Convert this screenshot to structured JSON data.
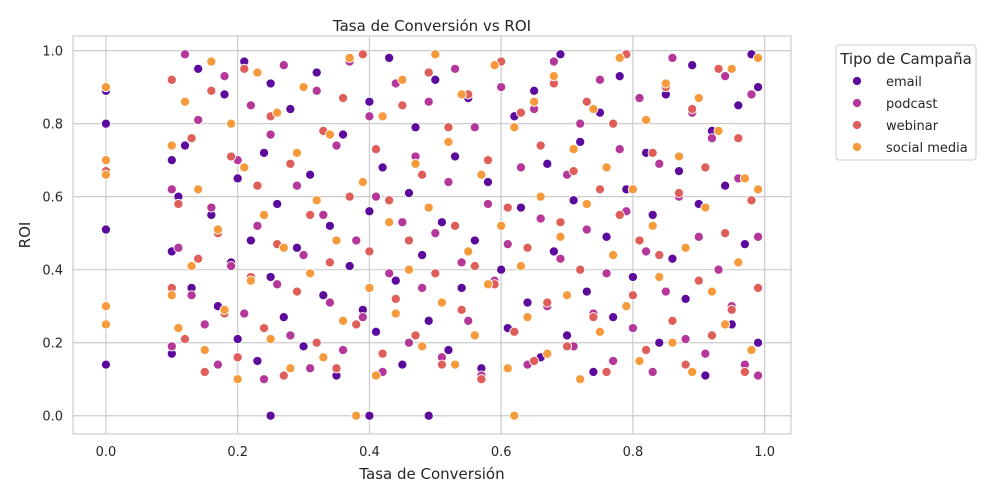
{
  "chart_data": {
    "type": "scatter",
    "title": "Tasa de Conversión vs ROI",
    "xlabel": "Tasa de Conversión",
    "ylabel": "ROI",
    "xlim": [
      -0.05,
      1.04
    ],
    "ylim": [
      -0.05,
      1.04
    ],
    "xticks": [
      0.0,
      0.2,
      0.4,
      0.6,
      0.8,
      1.0
    ],
    "yticks": [
      0.0,
      0.2,
      0.4,
      0.6,
      0.8,
      1.0
    ],
    "tick_labels_x": [
      "0.0",
      "0.2",
      "0.4",
      "0.6",
      "0.8",
      "1.0"
    ],
    "tick_labels_y": [
      "0.0",
      "0.2",
      "0.4",
      "0.6",
      "0.8",
      "1.0"
    ],
    "grid": true,
    "legend": {
      "title": "Tipo de Campaña",
      "placement": "outside-right"
    },
    "series": [
      {
        "name": "email",
        "color": "#5c0a9e",
        "x": [
          0.0,
          0.0,
          0.0,
          0.0,
          0.1,
          0.1,
          0.1,
          0.11,
          0.12,
          0.13,
          0.14,
          0.15,
          0.16,
          0.17,
          0.18,
          0.19,
          0.2,
          0.2,
          0.21,
          0.22,
          0.23,
          0.24,
          0.25,
          0.25,
          0.25,
          0.26,
          0.27,
          0.28,
          0.29,
          0.3,
          0.31,
          0.32,
          0.33,
          0.34,
          0.35,
          0.36,
          0.37,
          0.38,
          0.39,
          0.4,
          0.4,
          0.4,
          0.41,
          0.42,
          0.43,
          0.44,
          0.45,
          0.46,
          0.47,
          0.48,
          0.49,
          0.49,
          0.5,
          0.51,
          0.52,
          0.53,
          0.54,
          0.55,
          0.56,
          0.57,
          0.58,
          0.59,
          0.6,
          0.61,
          0.62,
          0.63,
          0.64,
          0.65,
          0.66,
          0.67,
          0.68,
          0.69,
          0.7,
          0.71,
          0.72,
          0.73,
          0.74,
          0.75,
          0.76,
          0.77,
          0.78,
          0.79,
          0.8,
          0.81,
          0.82,
          0.83,
          0.84,
          0.85,
          0.86,
          0.87,
          0.88,
          0.89,
          0.9,
          0.91,
          0.92,
          0.93,
          0.94,
          0.95,
          0.96,
          0.97,
          0.98,
          0.99,
          0.99
        ],
        "y": [
          0.89,
          0.8,
          0.51,
          0.14,
          0.7,
          0.45,
          0.17,
          0.6,
          0.74,
          0.35,
          0.95,
          0.12,
          0.55,
          0.3,
          0.88,
          0.42,
          0.65,
          0.21,
          0.97,
          0.48,
          0.15,
          0.72,
          0.0,
          0.38,
          0.91,
          0.58,
          0.27,
          0.84,
          0.46,
          0.19,
          0.66,
          0.94,
          0.33,
          0.52,
          0.11,
          0.77,
          0.41,
          0.0,
          0.29,
          0.86,
          0.0,
          0.56,
          0.23,
          0.68,
          0.98,
          0.37,
          0.14,
          0.61,
          0.79,
          0.44,
          0.0,
          0.26,
          0.92,
          0.53,
          0.18,
          0.71,
          0.35,
          0.87,
          0.48,
          0.13,
          0.64,
          0.96,
          0.4,
          0.24,
          0.82,
          0.57,
          0.31,
          0.89,
          0.16,
          0.69,
          0.45,
          0.99,
          0.22,
          0.59,
          0.75,
          0.34,
          0.12,
          0.83,
          0.49,
          0.27,
          0.93,
          0.62,
          0.38,
          0.15,
          0.72,
          0.55,
          0.2,
          0.88,
          0.43,
          0.67,
          0.32,
          0.96,
          0.58,
          0.11,
          0.78,
          0.4,
          0.63,
          0.25,
          0.85,
          0.47,
          0.99,
          0.2,
          0.9
        ]
      },
      {
        "name": "podcast",
        "color": "#b5379a",
        "x": [
          0.1,
          0.1,
          0.11,
          0.12,
          0.13,
          0.14,
          0.15,
          0.16,
          0.17,
          0.18,
          0.19,
          0.2,
          0.21,
          0.22,
          0.23,
          0.24,
          0.25,
          0.26,
          0.27,
          0.28,
          0.29,
          0.3,
          0.31,
          0.32,
          0.33,
          0.34,
          0.35,
          0.36,
          0.37,
          0.38,
          0.39,
          0.4,
          0.41,
          0.42,
          0.43,
          0.44,
          0.45,
          0.46,
          0.47,
          0.48,
          0.49,
          0.5,
          0.51,
          0.52,
          0.53,
          0.54,
          0.55,
          0.56,
          0.57,
          0.58,
          0.59,
          0.6,
          0.61,
          0.62,
          0.63,
          0.64,
          0.65,
          0.66,
          0.67,
          0.68,
          0.69,
          0.7,
          0.71,
          0.72,
          0.73,
          0.74,
          0.75,
          0.76,
          0.77,
          0.78,
          0.79,
          0.8,
          0.81,
          0.82,
          0.83,
          0.84,
          0.85,
          0.86,
          0.87,
          0.88,
          0.89,
          0.9,
          0.91,
          0.92,
          0.93,
          0.94,
          0.95,
          0.96,
          0.97,
          0.98,
          0.99,
          0.99
        ],
        "y": [
          0.62,
          0.19,
          0.46,
          0.99,
          0.33,
          0.81,
          0.25,
          0.57,
          0.14,
          0.93,
          0.41,
          0.7,
          0.28,
          0.85,
          0.52,
          0.1,
          0.77,
          0.36,
          0.96,
          0.22,
          0.63,
          0.44,
          0.13,
          0.89,
          0.55,
          0.31,
          0.74,
          0.18,
          0.97,
          0.48,
          0.27,
          0.82,
          0.6,
          0.12,
          0.39,
          0.91,
          0.53,
          0.2,
          0.71,
          0.35,
          0.86,
          0.5,
          0.16,
          0.64,
          0.95,
          0.42,
          0.26,
          0.79,
          0.11,
          0.58,
          0.37,
          0.9,
          0.47,
          0.23,
          0.68,
          0.14,
          0.84,
          0.54,
          0.3,
          0.97,
          0.43,
          0.66,
          0.19,
          0.8,
          0.51,
          0.28,
          0.92,
          0.39,
          0.15,
          0.73,
          0.56,
          0.24,
          0.87,
          0.45,
          0.12,
          0.69,
          0.34,
          0.98,
          0.6,
          0.21,
          0.83,
          0.49,
          0.17,
          0.76,
          0.4,
          0.93,
          0.3,
          0.65,
          0.14,
          0.88,
          0.11,
          0.49
        ]
      },
      {
        "name": "webinar",
        "color": "#df5e5a",
        "x": [
          0.0,
          0.1,
          0.1,
          0.11,
          0.12,
          0.13,
          0.14,
          0.15,
          0.16,
          0.17,
          0.18,
          0.19,
          0.2,
          0.21,
          0.22,
          0.23,
          0.24,
          0.25,
          0.26,
          0.27,
          0.28,
          0.29,
          0.3,
          0.31,
          0.32,
          0.33,
          0.34,
          0.35,
          0.36,
          0.37,
          0.38,
          0.39,
          0.4,
          0.41,
          0.42,
          0.43,
          0.44,
          0.45,
          0.46,
          0.47,
          0.48,
          0.49,
          0.5,
          0.51,
          0.52,
          0.53,
          0.54,
          0.55,
          0.56,
          0.57,
          0.58,
          0.59,
          0.6,
          0.61,
          0.62,
          0.63,
          0.64,
          0.65,
          0.66,
          0.67,
          0.68,
          0.69,
          0.7,
          0.71,
          0.72,
          0.73,
          0.74,
          0.75,
          0.76,
          0.77,
          0.78,
          0.79,
          0.8,
          0.81,
          0.82,
          0.83,
          0.84,
          0.85,
          0.86,
          0.87,
          0.88,
          0.89,
          0.9,
          0.91,
          0.92,
          0.93,
          0.94,
          0.95,
          0.96,
          0.97,
          0.98,
          0.99
        ],
        "y": [
          0.67,
          0.92,
          0.35,
          0.58,
          0.21,
          0.76,
          0.43,
          0.12,
          0.89,
          0.5,
          0.28,
          0.71,
          0.16,
          0.95,
          0.38,
          0.63,
          0.24,
          0.82,
          0.47,
          0.11,
          0.69,
          0.34,
          0.9,
          0.55,
          0.2,
          0.78,
          0.42,
          0.13,
          0.87,
          0.6,
          0.25,
          0.99,
          0.45,
          0.73,
          0.17,
          0.59,
          0.32,
          0.85,
          0.48,
          0.22,
          0.66,
          0.94,
          0.39,
          0.14,
          0.79,
          0.52,
          0.29,
          0.88,
          0.41,
          0.1,
          0.7,
          0.36,
          0.97,
          0.57,
          0.23,
          0.83,
          0.46,
          0.15,
          0.74,
          0.31,
          0.91,
          0.53,
          0.19,
          0.67,
          0.4,
          0.86,
          0.27,
          0.62,
          0.12,
          0.8,
          0.55,
          0.99,
          0.33,
          0.48,
          0.18,
          0.72,
          0.44,
          0.9,
          0.26,
          0.61,
          0.14,
          0.84,
          0.37,
          0.68,
          0.22,
          0.95,
          0.5,
          0.29,
          0.76,
          0.12,
          0.59,
          0.35
        ]
      },
      {
        "name": "social media",
        "color": "#f69a3b",
        "x": [
          0.0,
          0.0,
          0.0,
          0.0,
          0.0,
          0.1,
          0.1,
          0.11,
          0.12,
          0.13,
          0.14,
          0.15,
          0.16,
          0.17,
          0.18,
          0.19,
          0.2,
          0.21,
          0.22,
          0.23,
          0.24,
          0.25,
          0.26,
          0.27,
          0.28,
          0.29,
          0.3,
          0.31,
          0.32,
          0.33,
          0.34,
          0.35,
          0.36,
          0.37,
          0.38,
          0.39,
          0.4,
          0.41,
          0.42,
          0.43,
          0.44,
          0.45,
          0.46,
          0.47,
          0.48,
          0.49,
          0.5,
          0.51,
          0.52,
          0.53,
          0.54,
          0.55,
          0.56,
          0.57,
          0.58,
          0.59,
          0.6,
          0.61,
          0.62,
          0.62,
          0.63,
          0.64,
          0.65,
          0.66,
          0.67,
          0.68,
          0.69,
          0.7,
          0.71,
          0.72,
          0.73,
          0.74,
          0.75,
          0.76,
          0.77,
          0.78,
          0.79,
          0.8,
          0.81,
          0.82,
          0.83,
          0.84,
          0.85,
          0.86,
          0.87,
          0.88,
          0.89,
          0.9,
          0.91,
          0.92,
          0.93,
          0.94,
          0.95,
          0.96,
          0.97,
          0.98,
          0.99,
          0.99
        ],
        "y": [
          0.9,
          0.7,
          0.66,
          0.3,
          0.25,
          0.74,
          0.33,
          0.24,
          0.86,
          0.41,
          0.62,
          0.18,
          0.97,
          0.51,
          0.29,
          0.8,
          0.1,
          0.68,
          0.37,
          0.94,
          0.55,
          0.21,
          0.83,
          0.46,
          0.13,
          0.72,
          0.9,
          0.39,
          0.59,
          0.16,
          0.77,
          0.48,
          0.26,
          0.98,
          0.0,
          0.64,
          0.35,
          0.11,
          0.82,
          0.53,
          0.28,
          0.92,
          0.4,
          0.69,
          0.19,
          0.57,
          0.99,
          0.31,
          0.75,
          0.14,
          0.88,
          0.45,
          0.22,
          0.66,
          0.36,
          0.96,
          0.52,
          0.13,
          0.0,
          0.79,
          0.41,
          0.27,
          0.86,
          0.6,
          0.17,
          0.93,
          0.49,
          0.33,
          0.73,
          0.1,
          0.58,
          0.84,
          0.23,
          0.68,
          0.44,
          0.98,
          0.3,
          0.62,
          0.15,
          0.81,
          0.52,
          0.38,
          0.91,
          0.2,
          0.71,
          0.46,
          0.12,
          0.87,
          0.57,
          0.34,
          0.78,
          0.25,
          0.95,
          0.42,
          0.65,
          0.18,
          0.98,
          0.62
        ]
      }
    ]
  }
}
